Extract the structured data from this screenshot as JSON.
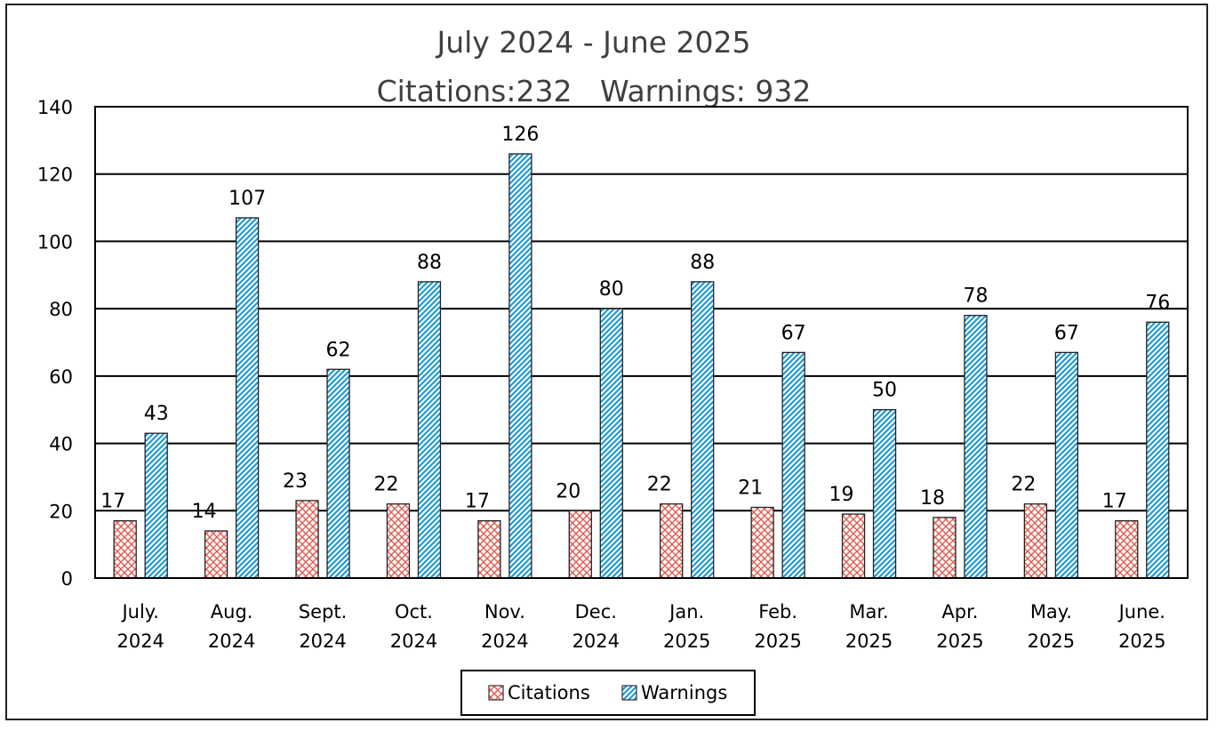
{
  "chart_data": {
    "type": "bar",
    "title": "July 2024 - June 2025",
    "subtitle": "Citations:232   Warnings: 932",
    "categories": [
      [
        "July.",
        "2024"
      ],
      [
        "Aug.",
        "2024"
      ],
      [
        "Sept.",
        "2024"
      ],
      [
        "Oct.",
        "2024"
      ],
      [
        "Nov.",
        "2024"
      ],
      [
        "Dec.",
        "2024"
      ],
      [
        "Jan.",
        "2025"
      ],
      [
        "Feb.",
        "2025"
      ],
      [
        "Mar.",
        "2025"
      ],
      [
        "Apr.",
        "2025"
      ],
      [
        "May.",
        "2025"
      ],
      [
        "June.",
        "2025"
      ]
    ],
    "series": [
      {
        "name": "Citations",
        "values": [
          17,
          14,
          23,
          22,
          17,
          20,
          22,
          21,
          19,
          18,
          22,
          17
        ],
        "color": "#e05a4f",
        "pattern": "crosshatch"
      },
      {
        "name": "Warnings",
        "values": [
          43,
          107,
          62,
          88,
          126,
          80,
          88,
          67,
          50,
          78,
          67,
          76
        ],
        "color": "#1f9ad6",
        "pattern": "diagonal"
      }
    ],
    "ylim": [
      0,
      140
    ],
    "yticks": [
      0,
      20,
      40,
      60,
      80,
      100,
      120,
      140
    ],
    "grid": true,
    "legend": "bottom-center",
    "xlabel": "",
    "ylabel": ""
  }
}
